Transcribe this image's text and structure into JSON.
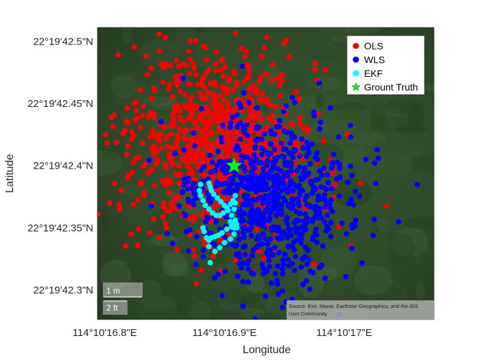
{
  "chart_data": {
    "type": "scatter",
    "title": "",
    "xlabel": "Longitude",
    "ylabel": "Latitude",
    "x_ticks": [
      "114°10'16.8\"E",
      "114°10'16.9\"E",
      "114°10'17\"E"
    ],
    "x_tick_values": [
      16.8,
      16.9,
      17.0
    ],
    "y_ticks": [
      "22°19'42.5\"N",
      "22°19'42.45\"N",
      "22°19'42.4\"N",
      "22°19'42.35\"N",
      "22°19'42.3\"N"
    ],
    "y_tick_values": [
      42.5,
      42.45,
      42.4,
      42.35,
      42.3
    ],
    "xlim": [
      16.7938,
      17.075
    ],
    "ylim": [
      42.2762,
      42.5113
    ],
    "legend_position": "top-right",
    "series": [
      {
        "name": "OLS",
        "color": "#ff0000",
        "marker": "circle",
        "center": [
          16.895,
          42.413
        ],
        "spread": [
          0.04,
          0.037
        ],
        "count": 900
      },
      {
        "name": "WLS",
        "color": "#0000ff",
        "marker": "circle",
        "center": [
          16.935,
          42.374
        ],
        "spread": [
          0.034,
          0.033
        ],
        "count": 750
      },
      {
        "name": "EKF",
        "color": "#00ffff",
        "marker": "circle",
        "x": [
          16.88,
          16.879,
          16.88,
          16.882,
          16.884,
          16.887,
          16.89,
          16.893,
          16.896,
          16.899,
          16.902,
          16.905,
          16.907,
          16.909,
          16.909,
          16.908,
          16.906,
          16.905,
          16.906,
          16.908,
          16.91,
          16.909,
          16.906,
          16.902,
          16.898,
          16.895,
          16.892,
          16.889,
          16.887,
          16.885,
          16.883,
          16.882,
          16.887,
          16.888,
          16.892,
          16.896,
          16.9,
          16.905,
          16.908,
          16.91,
          16.909,
          16.906,
          16.903,
          16.9,
          16.897,
          16.894,
          16.891,
          16.889,
          16.888,
          16.887
        ],
        "y": [
          42.385,
          42.38,
          42.376,
          42.372,
          42.368,
          42.365,
          42.362,
          42.36,
          42.36,
          42.362,
          42.366,
          42.369,
          42.372,
          42.376,
          42.37,
          42.365,
          42.36,
          42.355,
          42.351,
          42.35,
          42.353,
          42.356,
          42.352,
          42.349,
          42.346,
          42.344,
          42.343,
          42.342,
          42.34,
          42.342,
          42.347,
          42.35,
          42.335,
          42.322,
          42.331,
          42.334,
          42.338,
          42.341,
          42.345,
          42.35,
          42.355,
          42.36,
          42.364,
          42.368,
          42.371,
          42.374,
          42.377,
          42.38,
          42.383,
          42.386
        ]
      },
      {
        "name": "Grount Truth",
        "color": "#00ff00",
        "marker": "star",
        "x": [
          16.908
        ],
        "y": [
          42.4
        ]
      }
    ],
    "scale_bar": {
      "label_m": "1 m",
      "label_ft": "2 ft"
    },
    "attribution": [
      "Source: Esri, Maxar, Earthstar Geographics, and the GIS",
      "User Community"
    ]
  }
}
